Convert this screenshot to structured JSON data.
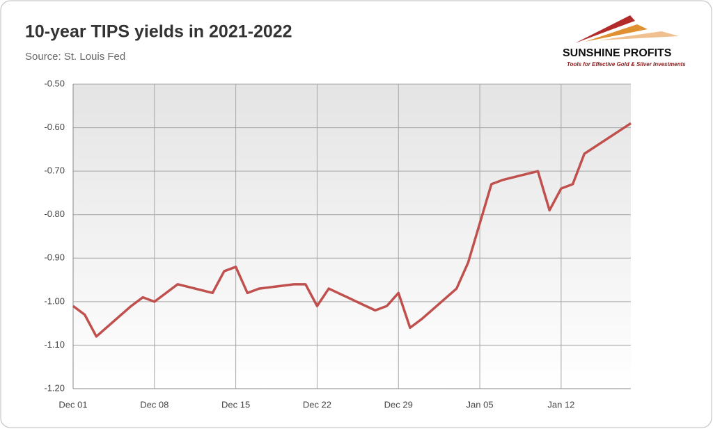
{
  "chart_data": {
    "type": "line",
    "title": "10-year TIPS yields in 2021-2022",
    "subtitle": "Source: St. Louis Fed",
    "logo": {
      "name": "SUNSHINE PROFITS",
      "tagline": "Tools for Effective Gold & Silver Investments"
    },
    "x": [
      "Dec 01",
      "Dec 02",
      "Dec 03",
      "Dec 06",
      "Dec 07",
      "Dec 08",
      "Dec 09",
      "Dec 10",
      "Dec 13",
      "Dec 14",
      "Dec 15",
      "Dec 16",
      "Dec 17",
      "Dec 20",
      "Dec 21",
      "Dec 22",
      "Dec 23",
      "Dec 27",
      "Dec 28",
      "Dec 29",
      "Dec 30",
      "Dec 31",
      "Jan 03",
      "Jan 04",
      "Jan 05",
      "Jan 06",
      "Jan 07",
      "Jan 10",
      "Jan 11",
      "Jan 12",
      "Jan 13",
      "Jan 14",
      "Jan 18"
    ],
    "series": [
      {
        "name": "10-year TIPS yield",
        "color": "#c0504d",
        "values": [
          -1.01,
          -1.03,
          -1.08,
          -1.01,
          -0.99,
          -1.0,
          -0.98,
          -0.96,
          -0.98,
          -0.93,
          -0.92,
          -0.98,
          -0.97,
          -0.96,
          -0.96,
          -1.01,
          -0.97,
          -1.02,
          -1.01,
          -0.98,
          -1.06,
          -1.04,
          -0.97,
          -0.91,
          -0.82,
          -0.73,
          -0.72,
          -0.7,
          -0.79,
          -0.74,
          -0.73,
          -0.66,
          -0.59
        ]
      }
    ],
    "xlim": [
      "Dec 01",
      "Jan 18"
    ],
    "xticks": [
      "Dec 01",
      "Dec 08",
      "Dec 15",
      "Dec 22",
      "Dec 29",
      "Jan 05",
      "Jan 12"
    ],
    "ylim": [
      -1.2,
      -0.5
    ],
    "yticks": [
      {
        "value": -1.2,
        "label": "-1.20"
      },
      {
        "value": -1.1,
        "label": "-1.10"
      },
      {
        "value": -1.0,
        "label": "-1.00"
      },
      {
        "value": -0.9,
        "label": "-0.90"
      },
      {
        "value": -0.8,
        "label": "-0.80"
      },
      {
        "value": -0.7,
        "label": "-0.70"
      },
      {
        "value": -0.6,
        "label": "-0.60"
      },
      {
        "value": -0.5,
        "label": "-0.50"
      }
    ],
    "grid": true
  }
}
